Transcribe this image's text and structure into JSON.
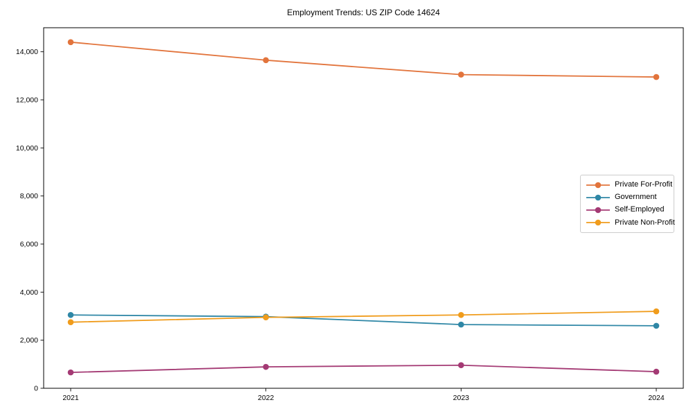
{
  "chart_data": {
    "type": "line",
    "title": "Employment Trends: US ZIP Code 14624",
    "x": [
      "2021",
      "2022",
      "2023",
      "2024"
    ],
    "xlabel": "",
    "ylabel": "",
    "ylim": [
      0,
      15000
    ],
    "yticks": [
      0,
      2000,
      4000,
      6000,
      8000,
      10000,
      12000,
      14000
    ],
    "grid": false,
    "legend_position": "center-right",
    "series": [
      {
        "name": "Private For-Profit",
        "color": "#E2743C",
        "values": [
          14400,
          13650,
          13050,
          12950
        ]
      },
      {
        "name": "Government",
        "color": "#2F87A6",
        "values": [
          3050,
          2980,
          2650,
          2600
        ]
      },
      {
        "name": "Self-Employed",
        "color": "#A43A74",
        "values": [
          660,
          890,
          960,
          690
        ]
      },
      {
        "name": "Private Non-Profit",
        "color": "#F09C1C",
        "values": [
          2750,
          2950,
          3050,
          3200
        ]
      }
    ]
  }
}
